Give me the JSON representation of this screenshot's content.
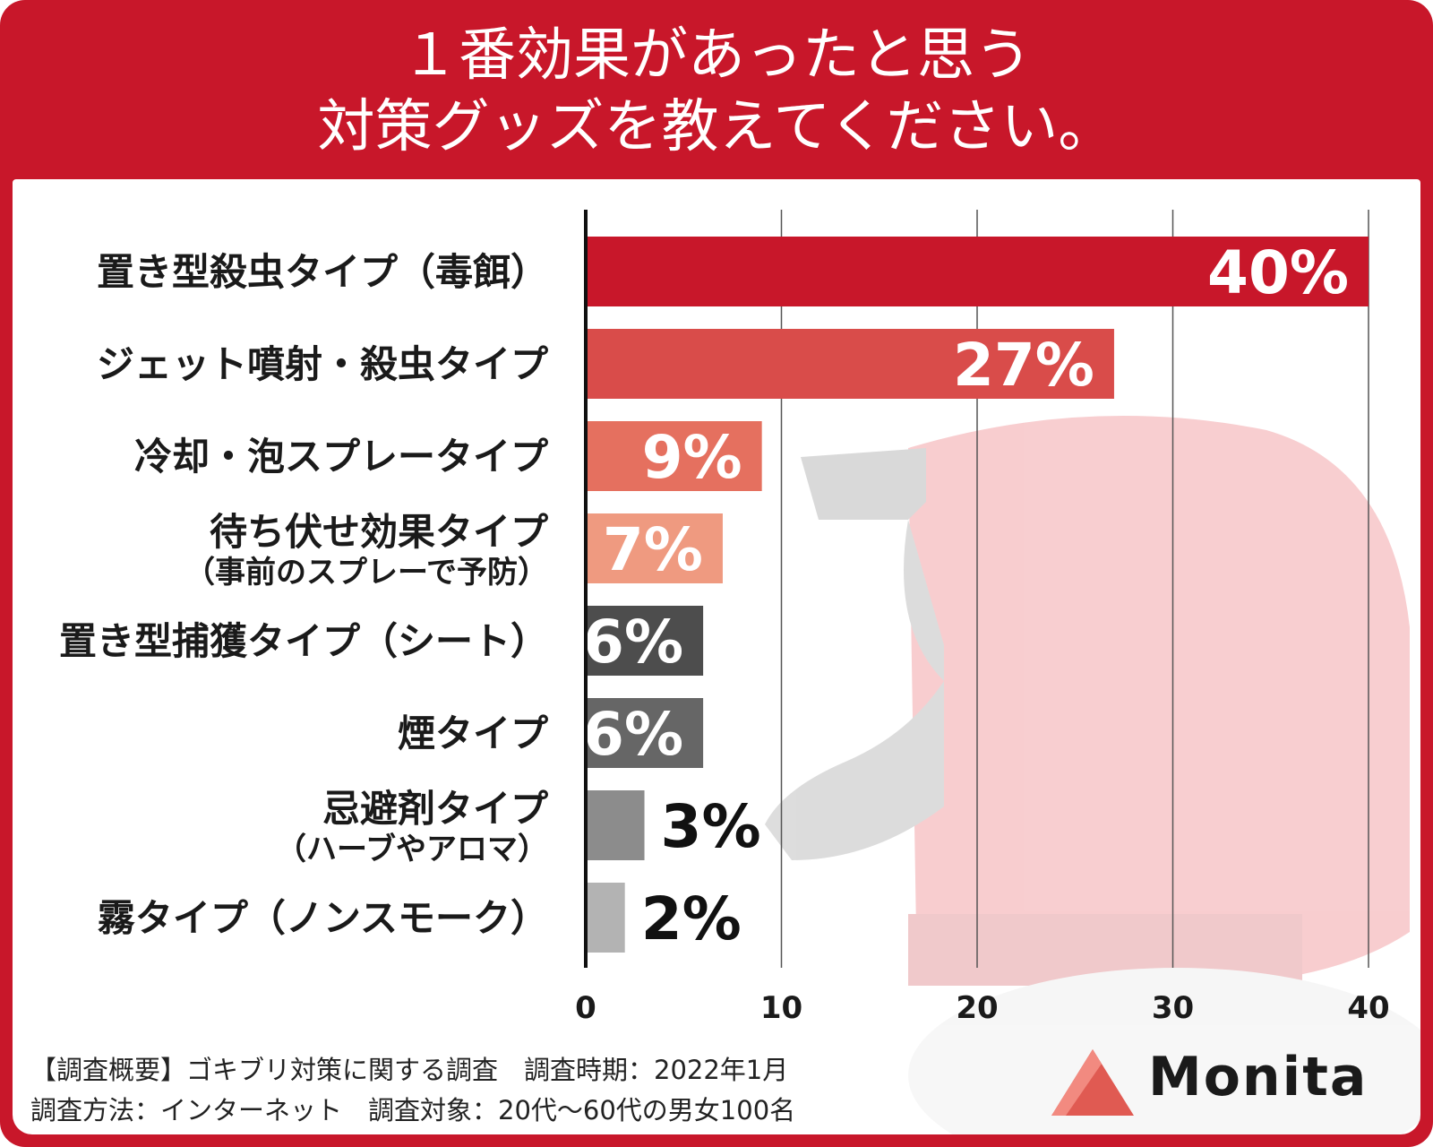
{
  "header": {
    "title": "１番効果があったと思う\n対策グッズを教えてください。"
  },
  "chart_data": {
    "type": "bar",
    "orientation": "horizontal",
    "categories": [
      [
        "置き型殺虫タイプ（毒餌）"
      ],
      [
        "ジェット噴射・殺虫タイプ"
      ],
      [
        "冷却・泡スプレータイプ"
      ],
      [
        "待ち伏せ効果タイプ",
        "（事前のスプレーで予防）"
      ],
      [
        "置き型捕獲タイプ（シート）"
      ],
      [
        "煙タイプ"
      ],
      [
        "忌避剤タイプ",
        "（ハーブやアロマ）"
      ],
      [
        "霧タイプ（ノンスモーク）"
      ]
    ],
    "values": [
      40,
      27,
      9,
      7,
      6,
      6,
      3,
      2
    ],
    "value_labels": [
      "40%",
      "27%",
      "9%",
      "7%",
      "6%",
      "6%",
      "3%",
      "2%"
    ],
    "bar_colors": [
      "#c8172a",
      "#d94c4a",
      "#e5705f",
      "#ef9a80",
      "#4d4d4d",
      "#666666",
      "#8c8c8c",
      "#b3b3b3"
    ],
    "xlim": [
      0,
      40
    ],
    "xticks": [
      "0",
      "10",
      "20",
      "30",
      "40"
    ],
    "grid": true,
    "xlabel": "",
    "ylabel": ""
  },
  "footer": {
    "line1": "【調査概要】ゴキブリ対策に関する調査　調査時期：2022年1月",
    "line2": "調査方法：インターネット　調査対象：20代〜60代の男女100名"
  },
  "brand": {
    "name": "Monita",
    "accent": "#e05a52"
  },
  "colors": {
    "header_red": "#c8172a"
  }
}
